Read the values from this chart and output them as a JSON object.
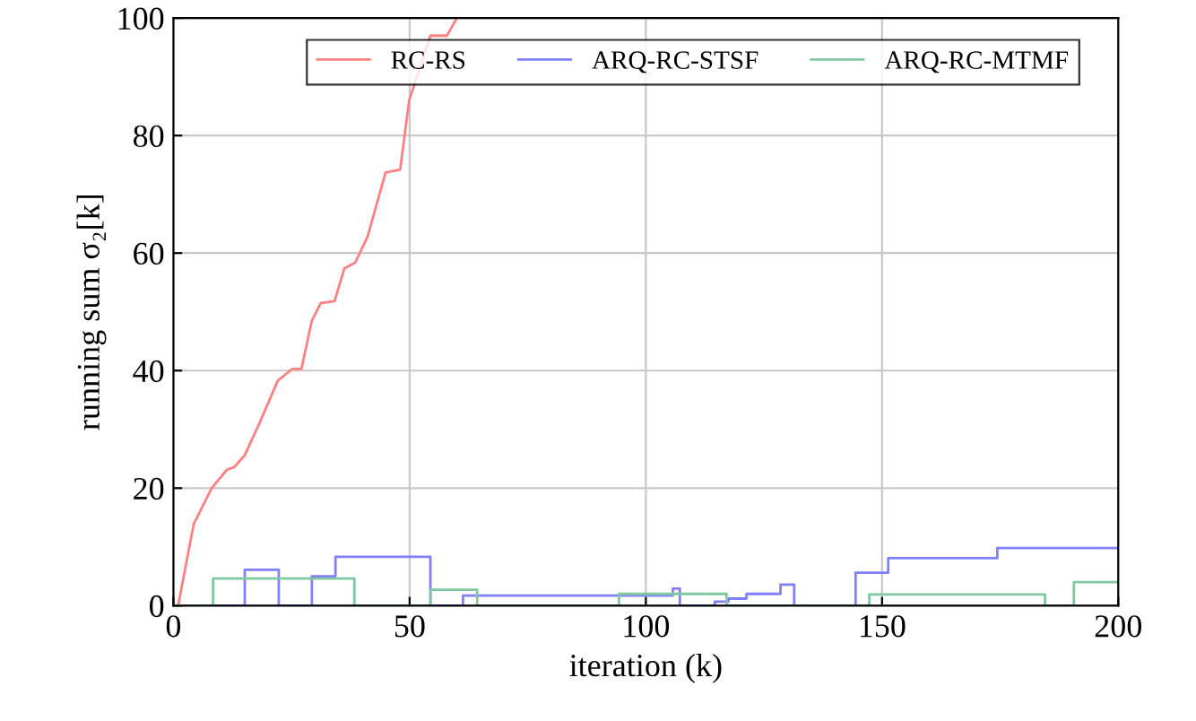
{
  "chart_data": {
    "type": "line",
    "xlabel": "iteration (k)",
    "ylabel": "running sum σ₂[k]",
    "xlim": [
      0,
      200
    ],
    "ylim": [
      0,
      100
    ],
    "xticks": [
      0,
      50,
      100,
      150,
      200
    ],
    "yticks": [
      0,
      20,
      40,
      60,
      80,
      100
    ],
    "grid": true,
    "legend": "top",
    "marker": "none",
    "line_style": "solid",
    "series": [
      {
        "name": "RC-RS",
        "color": "#ff8080",
        "x": [
          1,
          4.3,
          8.1,
          11.3,
          12.9,
          15.1,
          18.3,
          22.1,
          25.2,
          27.1,
          29.3,
          31.2,
          34.1,
          36.2,
          38.5,
          41.1,
          44.9,
          48,
          49.9,
          54.4,
          57.9,
          60
        ],
        "values": [
          0,
          13.9,
          20,
          23.1,
          23.6,
          25.6,
          31.2,
          38.3,
          40.3,
          40.3,
          48.5,
          51.5,
          51.8,
          57.4,
          58.4,
          62.8,
          73.7,
          74.2,
          86,
          97,
          97,
          100
        ]
      },
      {
        "name": "ARQ-RC-STSF",
        "type": "step",
        "color": "#8080ff",
        "x": [
          0,
          15.1,
          22.3,
          29.3,
          34.3,
          54.4,
          61.3,
          105.7,
          107.2,
          114.6,
          117.5,
          121.3,
          128.5,
          131.4,
          144.4,
          151.3,
          174.4,
          200
        ],
        "values": [
          0,
          6.1,
          0,
          5,
          8.3,
          0,
          1.7,
          2.9,
          0,
          0.7,
          1.2,
          2,
          3.6,
          0,
          5.6,
          8.1,
          9.8,
          9.8
        ]
      },
      {
        "name": "ARQ-RC-MTMF",
        "type": "step",
        "color": "#80c8a0",
        "x": [
          0,
          8.4,
          38.3,
          54.4,
          64.3,
          94.3,
          117.1,
          147.3,
          184.5,
          190.6,
          200
        ],
        "values": [
          0,
          4.6,
          0,
          2.7,
          0,
          2,
          0,
          1.9,
          0,
          4,
          4
        ]
      }
    ]
  }
}
